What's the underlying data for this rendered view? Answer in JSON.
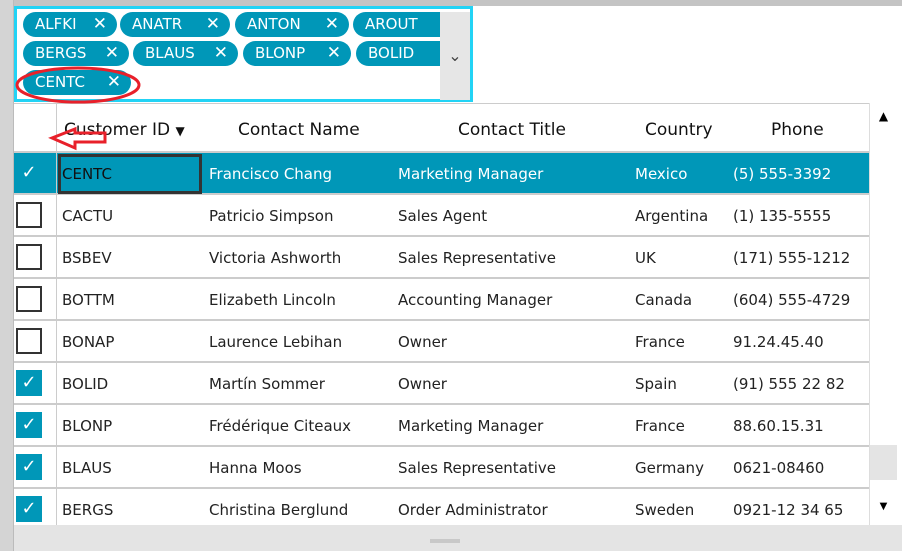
{
  "combo": {
    "chips": [
      "ALFKI",
      "ANATR",
      "ANTON",
      "AROUT",
      "BERGS",
      "BLAUS",
      "BLONP",
      "BOLID",
      "CENTC"
    ],
    "remove_glyph": "✕",
    "dropdown_glyph": "⌄"
  },
  "grid": {
    "columns": [
      "Customer ID",
      "Contact Name",
      "Contact Title",
      "Country",
      "Phone"
    ],
    "sort_glyph": "▼",
    "check_glyph": "✓",
    "rows": [
      {
        "checked": true,
        "selected": true,
        "id": "CENTC",
        "name": "Francisco Chang",
        "title": "Marketing Manager",
        "country": "Mexico",
        "phone": "(5) 555-3392"
      },
      {
        "checked": false,
        "id": "CACTU",
        "name": "Patricio Simpson",
        "title": "Sales Agent",
        "country": "Argentina",
        "phone": "(1) 135-5555"
      },
      {
        "checked": false,
        "id": "BSBEV",
        "name": "Victoria Ashworth",
        "title": "Sales Representative",
        "country": "UK",
        "phone": "(171) 555-1212"
      },
      {
        "checked": false,
        "id": "BOTTM",
        "name": "Elizabeth Lincoln",
        "title": "Accounting Manager",
        "country": "Canada",
        "phone": "(604) 555-4729"
      },
      {
        "checked": false,
        "id": "BONAP",
        "name": "Laurence Lebihan",
        "title": "Owner",
        "country": "France",
        "phone": "91.24.45.40"
      },
      {
        "checked": true,
        "id": "BOLID",
        "name": "Martín Sommer",
        "title": "Owner",
        "country": "Spain",
        "phone": "(91) 555 22 82"
      },
      {
        "checked": true,
        "id": "BLONP",
        "name": "Frédérique Citeaux",
        "title": "Marketing Manager",
        "country": "France",
        "phone": "88.60.15.31"
      },
      {
        "checked": true,
        "id": "BLAUS",
        "name": "Hanna Moos",
        "title": "Sales Representative",
        "country": "Germany",
        "phone": "0621-08460"
      },
      {
        "checked": true,
        "id": "BERGS",
        "name": "Christina Berglund",
        "title": "Order Administrator",
        "country": "Sweden",
        "phone": "0921-12 34 65"
      }
    ]
  },
  "scroll": {
    "up": "▲",
    "down": "▼"
  },
  "colors": {
    "accent": "#0097b8",
    "combo_border": "#22d3f5",
    "annotation": "#e8202a"
  }
}
